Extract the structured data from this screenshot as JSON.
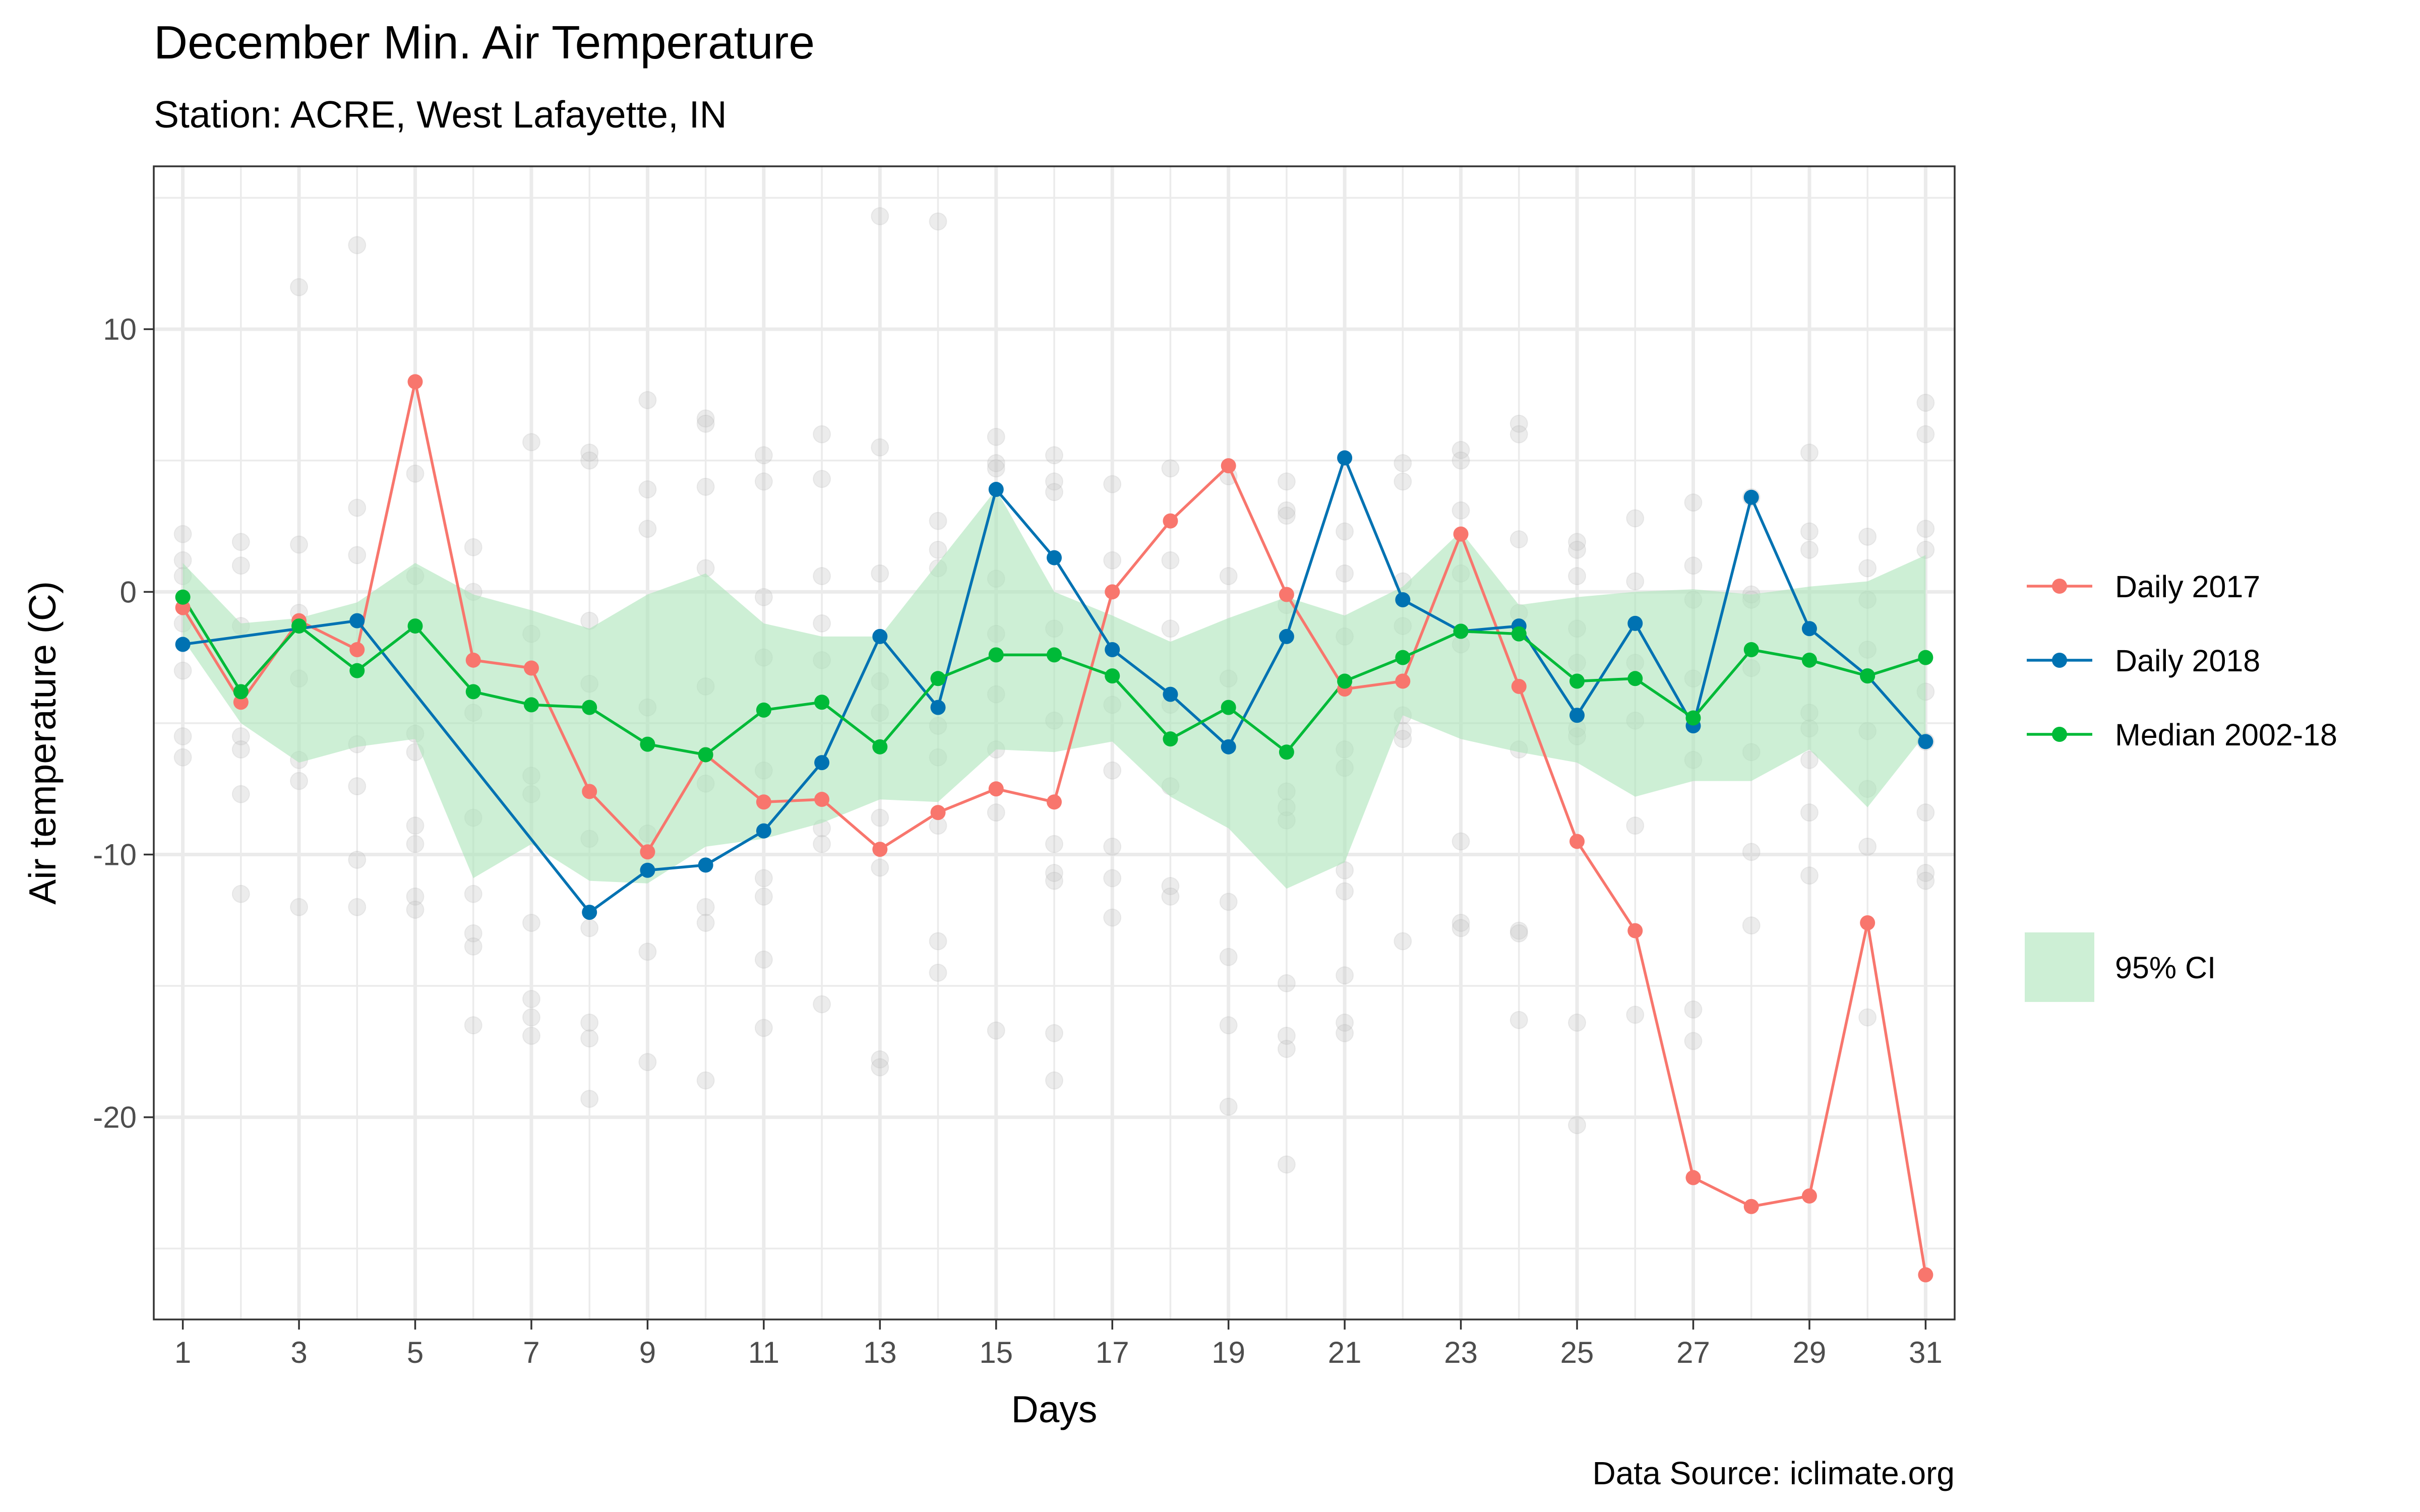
{
  "chart_data": {
    "type": "line",
    "title": "December Min. Air Temperature",
    "subtitle": "Station: ACRE, West Lafayette, IN",
    "xlabel": "Days",
    "ylabel": "Air temperature (C)",
    "caption": "Data Source: iclimate.org",
    "xlim": [
      0.5,
      31.5
    ],
    "ylim": [
      -27.7,
      16.2
    ],
    "x_ticks": [
      1,
      3,
      5,
      7,
      9,
      11,
      13,
      15,
      17,
      19,
      21,
      23,
      25,
      27,
      29,
      31
    ],
    "y_ticks": [
      10,
      0,
      -10,
      -20
    ],
    "grid": true,
    "legend_position": "right",
    "x": [
      1,
      2,
      3,
      4,
      5,
      6,
      7,
      8,
      9,
      10,
      11,
      12,
      13,
      14,
      15,
      16,
      17,
      18,
      19,
      20,
      21,
      22,
      23,
      24,
      25,
      26,
      27,
      28,
      29,
      30,
      31
    ],
    "series": [
      {
        "name": "Daily 2017",
        "color": "#f8766d",
        "values": [
          -0.6,
          -4.2,
          -1.1,
          -2.2,
          8.0,
          -2.6,
          -2.9,
          -7.6,
          -9.9,
          -6.2,
          -8.0,
          -7.9,
          -9.8,
          -8.4,
          -7.5,
          -8.0,
          0.0,
          2.7,
          4.8,
          -0.1,
          -3.7,
          -3.4,
          2.2,
          -3.6,
          -9.5,
          -12.9,
          -22.3,
          -23.4,
          -23.0,
          -12.6,
          -26.0
        ]
      },
      {
        "name": "Daily 2018",
        "color": "#0072b2",
        "x": [
          1,
          4,
          8,
          9,
          10,
          11,
          12,
          13,
          14,
          15,
          16,
          17,
          18,
          19,
          20,
          21,
          22,
          23,
          24,
          25,
          26,
          27,
          28,
          29,
          30,
          31
        ],
        "values": [
          -2.0,
          -1.1,
          -12.2,
          -10.6,
          -10.4,
          -9.1,
          -6.5,
          -1.7,
          -4.4,
          3.9,
          1.3,
          -2.2,
          -3.9,
          -5.9,
          -1.7,
          5.1,
          -0.3,
          -1.5,
          -1.3,
          -4.7,
          -1.2,
          -5.1,
          3.6,
          -1.4,
          -3.2,
          -5.7
        ]
      },
      {
        "name": "Median 2002-18",
        "color": "#00ba38",
        "values": [
          -0.2,
          -3.8,
          -1.3,
          -3.0,
          -1.3,
          -3.8,
          -4.3,
          -4.4,
          -5.8,
          -6.2,
          -4.5,
          -4.2,
          -5.9,
          -3.3,
          -2.4,
          -2.4,
          -3.2,
          -5.6,
          -4.4,
          -6.1,
          -3.4,
          -2.5,
          -1.5,
          -1.6,
          -3.4,
          -3.3,
          -4.8,
          -2.2,
          -2.6,
          -3.2,
          -2.5
        ]
      }
    ],
    "ci_band": {
      "name": "95% CI",
      "color": "#abe5b9",
      "upper": [
        1.1,
        -1.2,
        -1.0,
        -0.4,
        1.1,
        -0.1,
        -0.7,
        -1.4,
        -0.1,
        0.7,
        -1.2,
        -1.7,
        -1.7,
        1.1,
        3.9,
        0.0,
        -0.9,
        -1.9,
        -1.0,
        -0.2,
        -0.9,
        0.2,
        2.3,
        -0.5,
        -0.2,
        0.0,
        0.1,
        -0.1,
        0.2,
        0.4,
        1.4
      ],
      "lower": [
        -1.8,
        -5.0,
        -6.5,
        -5.9,
        -5.6,
        -10.9,
        -9.6,
        -11.0,
        -11.1,
        -9.7,
        -9.4,
        -8.8,
        -7.9,
        -8.0,
        -6.0,
        -6.1,
        -5.7,
        -7.8,
        -9.0,
        -11.3,
        -10.3,
        -4.7,
        -5.6,
        -6.1,
        -6.5,
        -7.8,
        -7.2,
        -7.2,
        -6.0,
        -8.2,
        -5.4
      ]
    },
    "background_points": {
      "color": "#bfbfbf",
      "points": [
        [
          1,
          2.2
        ],
        [
          1,
          1.2
        ],
        [
          1,
          -1.2
        ],
        [
          1,
          -3.0
        ],
        [
          1,
          -5.5
        ],
        [
          1,
          -6.3
        ],
        [
          1,
          0.6
        ],
        [
          2,
          1.9
        ],
        [
          2,
          1.0
        ],
        [
          2,
          -1.3
        ],
        [
          2,
          -5.5
        ],
        [
          2,
          -6.0
        ],
        [
          2,
          -7.7
        ],
        [
          2,
          -11.5
        ],
        [
          3,
          11.6
        ],
        [
          3,
          1.8
        ],
        [
          3,
          -0.8
        ],
        [
          3,
          -3.3
        ],
        [
          3,
          -6.4
        ],
        [
          3,
          -7.2
        ],
        [
          3,
          -12.0
        ],
        [
          4,
          13.2
        ],
        [
          4,
          3.2
        ],
        [
          4,
          1.4
        ],
        [
          4,
          -5.8
        ],
        [
          4,
          -7.4
        ],
        [
          4,
          -10.2
        ],
        [
          4,
          -12.0
        ],
        [
          5,
          4.5
        ],
        [
          5,
          0.6
        ],
        [
          5,
          -5.4
        ],
        [
          5,
          -6.1
        ],
        [
          5,
          -8.9
        ],
        [
          5,
          -9.6
        ],
        [
          5,
          -11.6
        ],
        [
          5,
          -12.1
        ],
        [
          6,
          1.7
        ],
        [
          6,
          0.0
        ],
        [
          6,
          -4.6
        ],
        [
          6,
          -8.6
        ],
        [
          6,
          -11.5
        ],
        [
          6,
          -13.0
        ],
        [
          6,
          -13.5
        ],
        [
          6,
          -16.5
        ],
        [
          7,
          5.7
        ],
        [
          7,
          -1.6
        ],
        [
          7,
          -7.0
        ],
        [
          7,
          -7.7
        ],
        [
          7,
          -12.6
        ],
        [
          7,
          -15.5
        ],
        [
          7,
          -16.2
        ],
        [
          7,
          -16.9
        ],
        [
          8,
          5.3
        ],
        [
          8,
          5.0
        ],
        [
          8,
          -1.1
        ],
        [
          8,
          -3.5
        ],
        [
          8,
          -9.4
        ],
        [
          8,
          -16.4
        ],
        [
          8,
          -17.0
        ],
        [
          8,
          -19.3
        ],
        [
          8,
          -12.8
        ],
        [
          9,
          7.3
        ],
        [
          9,
          3.9
        ],
        [
          9,
          2.4
        ],
        [
          9,
          -4.4
        ],
        [
          9,
          -9.2
        ],
        [
          9,
          -13.7
        ],
        [
          9,
          -17.9
        ],
        [
          10,
          6.6
        ],
        [
          10,
          6.4
        ],
        [
          10,
          4.0
        ],
        [
          10,
          0.9
        ],
        [
          10,
          -3.6
        ],
        [
          10,
          -7.3
        ],
        [
          10,
          -12.0
        ],
        [
          10,
          -12.6
        ],
        [
          10,
          -18.6
        ],
        [
          11,
          5.2
        ],
        [
          11,
          4.2
        ],
        [
          11,
          -0.2
        ],
        [
          11,
          -2.5
        ],
        [
          11,
          -6.8
        ],
        [
          11,
          -10.9
        ],
        [
          11,
          -11.6
        ],
        [
          11,
          -14.0
        ],
        [
          11,
          -16.6
        ],
        [
          12,
          6.0
        ],
        [
          12,
          4.3
        ],
        [
          12,
          0.6
        ],
        [
          12,
          -1.2
        ],
        [
          12,
          -2.6
        ],
        [
          12,
          -9.0
        ],
        [
          12,
          -9.6
        ],
        [
          12,
          -15.7
        ],
        [
          13,
          14.3
        ],
        [
          13,
          5.5
        ],
        [
          13,
          0.7
        ],
        [
          13,
          -3.4
        ],
        [
          13,
          -4.6
        ],
        [
          13,
          -8.6
        ],
        [
          13,
          -10.5
        ],
        [
          13,
          -17.8
        ],
        [
          13,
          -18.1
        ],
        [
          14,
          14.1
        ],
        [
          14,
          2.7
        ],
        [
          14,
          1.6
        ],
        [
          14,
          0.9
        ],
        [
          14,
          -5.1
        ],
        [
          14,
          -6.3
        ],
        [
          14,
          -8.9
        ],
        [
          14,
          -13.3
        ],
        [
          14,
          -14.5
        ],
        [
          15,
          5.9
        ],
        [
          15,
          4.9
        ],
        [
          15,
          4.7
        ],
        [
          15,
          0.5
        ],
        [
          15,
          -1.6
        ],
        [
          15,
          -3.9
        ],
        [
          15,
          -6.0
        ],
        [
          15,
          -8.4
        ],
        [
          15,
          -16.7
        ],
        [
          16,
          5.2
        ],
        [
          16,
          4.2
        ],
        [
          16,
          3.8
        ],
        [
          16,
          -1.4
        ],
        [
          16,
          -4.9
        ],
        [
          16,
          -9.6
        ],
        [
          16,
          -10.7
        ],
        [
          16,
          -11.0
        ],
        [
          16,
          -16.8
        ],
        [
          16,
          -18.6
        ],
        [
          17,
          4.1
        ],
        [
          17,
          1.2
        ],
        [
          17,
          -4.3
        ],
        [
          17,
          -6.8
        ],
        [
          17,
          -9.7
        ],
        [
          17,
          -10.9
        ],
        [
          17,
          -12.4
        ],
        [
          18,
          4.7
        ],
        [
          18,
          1.2
        ],
        [
          18,
          -1.4
        ],
        [
          18,
          -4.3
        ],
        [
          18,
          -7.4
        ],
        [
          18,
          -11.2
        ],
        [
          18,
          -11.6
        ],
        [
          19,
          4.4
        ],
        [
          19,
          0.6
        ],
        [
          19,
          -3.3
        ],
        [
          19,
          -11.8
        ],
        [
          19,
          -13.9
        ],
        [
          19,
          -16.5
        ],
        [
          19,
          -19.6
        ],
        [
          20,
          4.2
        ],
        [
          20,
          3.1
        ],
        [
          20,
          2.9
        ],
        [
          20,
          -0.5
        ],
        [
          20,
          -7.6
        ],
        [
          20,
          -8.2
        ],
        [
          20,
          -8.7
        ],
        [
          20,
          -14.9
        ],
        [
          20,
          -16.9
        ],
        [
          20,
          -17.4
        ],
        [
          20,
          -21.8
        ],
        [
          21,
          2.3
        ],
        [
          21,
          0.7
        ],
        [
          21,
          -1.7
        ],
        [
          21,
          -6.0
        ],
        [
          21,
          -6.7
        ],
        [
          21,
          -10.6
        ],
        [
          21,
          -11.4
        ],
        [
          21,
          -14.6
        ],
        [
          21,
          -16.4
        ],
        [
          21,
          -16.8
        ],
        [
          22,
          4.9
        ],
        [
          22,
          4.2
        ],
        [
          22,
          0.4
        ],
        [
          22,
          -1.3
        ],
        [
          22,
          -4.7
        ],
        [
          22,
          -5.3
        ],
        [
          22,
          -5.6
        ],
        [
          22,
          -13.3
        ],
        [
          23,
          5.4
        ],
        [
          23,
          5.0
        ],
        [
          23,
          3.1
        ],
        [
          23,
          0.7
        ],
        [
          23,
          -2.0
        ],
        [
          23,
          -9.5
        ],
        [
          23,
          -12.6
        ],
        [
          23,
          -12.8
        ],
        [
          24,
          6.4
        ],
        [
          24,
          6.0
        ],
        [
          24,
          2.0
        ],
        [
          24,
          -0.8
        ],
        [
          24,
          -6.0
        ],
        [
          24,
          -12.9
        ],
        [
          24,
          -13.0
        ],
        [
          24,
          -16.3
        ],
        [
          25,
          1.9
        ],
        [
          25,
          1.6
        ],
        [
          25,
          0.6
        ],
        [
          25,
          -1.4
        ],
        [
          25,
          -2.7
        ],
        [
          25,
          -5.2
        ],
        [
          25,
          -5.5
        ],
        [
          25,
          -16.4
        ],
        [
          25,
          -20.3
        ],
        [
          26,
          2.8
        ],
        [
          26,
          0.4
        ],
        [
          26,
          -2.7
        ],
        [
          26,
          -4.9
        ],
        [
          26,
          -8.9
        ],
        [
          26,
          -16.1
        ],
        [
          27,
          3.4
        ],
        [
          27,
          1.0
        ],
        [
          27,
          -0.3
        ],
        [
          27,
          -3.3
        ],
        [
          27,
          -6.4
        ],
        [
          27,
          -15.9
        ],
        [
          27,
          -17.1
        ],
        [
          28,
          3.6
        ],
        [
          28,
          -0.1
        ],
        [
          28,
          -0.3
        ],
        [
          28,
          -2.9
        ],
        [
          28,
          -6.1
        ],
        [
          28,
          -9.9
        ],
        [
          28,
          -12.7
        ],
        [
          29,
          5.3
        ],
        [
          29,
          2.3
        ],
        [
          29,
          1.6
        ],
        [
          29,
          -4.6
        ],
        [
          29,
          -5.2
        ],
        [
          29,
          -6.4
        ],
        [
          29,
          -8.4
        ],
        [
          29,
          -10.8
        ],
        [
          30,
          2.1
        ],
        [
          30,
          0.9
        ],
        [
          30,
          -0.3
        ],
        [
          30,
          -2.2
        ],
        [
          30,
          -5.3
        ],
        [
          30,
          -7.5
        ],
        [
          30,
          -9.7
        ],
        [
          30,
          -16.2
        ],
        [
          31,
          7.2
        ],
        [
          31,
          6.0
        ],
        [
          31,
          2.4
        ],
        [
          31,
          1.6
        ],
        [
          31,
          -3.8
        ],
        [
          31,
          -5.7
        ],
        [
          31,
          -8.4
        ],
        [
          31,
          -10.7
        ],
        [
          31,
          -11.0
        ]
      ]
    }
  },
  "legend": {
    "items": [
      {
        "label": "Daily 2017",
        "color": "#f8766d"
      },
      {
        "label": "Daily 2018",
        "color": "#0072b2"
      },
      {
        "label": "Median 2002-18",
        "color": "#00ba38"
      }
    ],
    "ci_label": "95% CI"
  }
}
